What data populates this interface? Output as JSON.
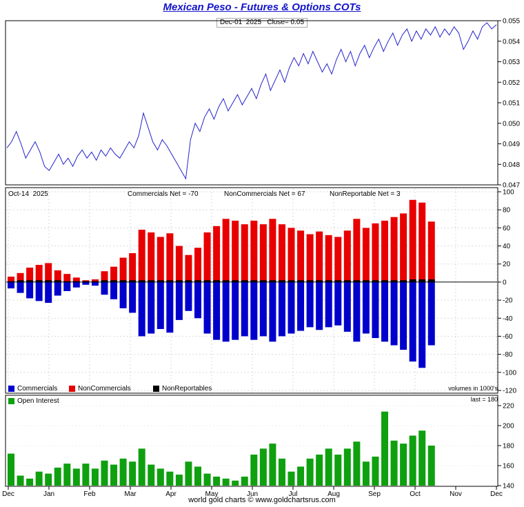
{
  "page": {
    "title": "Mexican Peso - Futures & Options COTs",
    "subtitle": "Dec-01  2025   Close= 0.05",
    "footer": "world gold charts © www.goldchartsrus.com"
  },
  "cot_header": {
    "date": "Oct-14  2025",
    "commercials": "Commercials Net = -70",
    "noncommercials": "NonCommercials Net = 67",
    "nonreportables": "NonReportable Net = 3"
  },
  "legend": {
    "commercials": "Commercials",
    "noncommercials": "NonCommercials",
    "nonreportables": "NonReportables",
    "open_interest": "Open Interest"
  },
  "notes": {
    "volumes": "volumes in 1000's",
    "last": "last = 180"
  },
  "colors": {
    "title": "#1414cc",
    "price_line": "#2222cc",
    "commercials": "#0000cc",
    "noncommercials": "#e80000",
    "nonreportables": "#000000",
    "open_interest": "#0fa00f",
    "grid": "#d9d9d9",
    "axis": "#000000"
  },
  "x_axis": {
    "labels": [
      "Dec",
      "Jan",
      "Feb",
      "Mar",
      "Apr",
      "May",
      "Jun",
      "Jul",
      "Aug",
      "Sep",
      "Oct",
      "Nov",
      "Dec"
    ]
  },
  "chart_data": [
    {
      "type": "line",
      "name": "peso-futures-price",
      "title": "Dec-01 2025 Close= 0.05",
      "ylim": [
        0.047,
        0.055
      ],
      "y_ticks": [
        "0.055",
        "0.054",
        "0.053",
        "0.052",
        "0.051",
        "0.050",
        "0.049",
        "0.048",
        "0.047"
      ],
      "x_range": [
        "Dec",
        "Dec"
      ],
      "values": [
        0.0488,
        0.0491,
        0.0496,
        0.049,
        0.0483,
        0.0487,
        0.0491,
        0.0486,
        0.0479,
        0.0477,
        0.0481,
        0.0485,
        0.048,
        0.0483,
        0.0479,
        0.0484,
        0.0487,
        0.0483,
        0.0486,
        0.0482,
        0.0487,
        0.0484,
        0.0488,
        0.0485,
        0.0483,
        0.0487,
        0.0491,
        0.0488,
        0.0494,
        0.0505,
        0.0498,
        0.0491,
        0.0487,
        0.0492,
        0.0489,
        0.0485,
        0.0481,
        0.0477,
        0.0473,
        0.0492,
        0.05,
        0.0496,
        0.0503,
        0.0507,
        0.0502,
        0.0508,
        0.0512,
        0.0506,
        0.051,
        0.0514,
        0.0509,
        0.0513,
        0.0517,
        0.0512,
        0.0519,
        0.0524,
        0.0516,
        0.0521,
        0.0526,
        0.052,
        0.0527,
        0.0532,
        0.0528,
        0.0534,
        0.0529,
        0.0535,
        0.053,
        0.0525,
        0.0529,
        0.0524,
        0.0531,
        0.0536,
        0.053,
        0.0535,
        0.0528,
        0.0534,
        0.0538,
        0.0532,
        0.0537,
        0.0541,
        0.0535,
        0.054,
        0.0544,
        0.0538,
        0.0543,
        0.0546,
        0.054,
        0.0545,
        0.0541,
        0.0546,
        0.0543,
        0.0547,
        0.0542,
        0.0546,
        0.0543,
        0.0547,
        0.0544,
        0.0536,
        0.054,
        0.0545,
        0.0541,
        0.0547,
        0.0549,
        0.0546,
        0.0548
      ]
    },
    {
      "type": "bar",
      "name": "cot-net-positions",
      "ylim": [
        -120,
        100
      ],
      "y_ticks": [
        "100",
        "80",
        "60",
        "40",
        "20",
        "0",
        "-20",
        "-40",
        "-60",
        "-80",
        "-100",
        "-120"
      ],
      "unit": "volumes in 1000's",
      "series": [
        {
          "name": "NonCommercials",
          "color_key": "noncommercials",
          "values": [
            6,
            10,
            16,
            19,
            21,
            13,
            9,
            5,
            2,
            3,
            12,
            17,
            27,
            32,
            58,
            55,
            50,
            54,
            40,
            30,
            38,
            55,
            62,
            70,
            68,
            64,
            68,
            64,
            70,
            64,
            60,
            57,
            53,
            56,
            52,
            50,
            57,
            70,
            60,
            65,
            68,
            72,
            76,
            91,
            88,
            67
          ]
        },
        {
          "name": "Commercials",
          "color_key": "commercials",
          "values": [
            -7,
            -12,
            -18,
            -21,
            -23,
            -15,
            -10,
            -6,
            -3,
            -4,
            -14,
            -19,
            -29,
            -34,
            -60,
            -57,
            -52,
            -56,
            -42,
            -32,
            -40,
            -57,
            -64,
            -66,
            -64,
            -60,
            -64,
            -60,
            -66,
            -60,
            -57,
            -54,
            -50,
            -53,
            -50,
            -48,
            -55,
            -66,
            -57,
            -62,
            -66,
            -70,
            -75,
            -88,
            -95,
            -70
          ]
        },
        {
          "name": "NonReportables",
          "color_key": "nonreportables",
          "values": [
            1,
            2,
            2,
            2,
            2,
            2,
            1,
            1,
            1,
            1,
            2,
            2,
            2,
            2,
            2,
            2,
            2,
            2,
            2,
            2,
            2,
            2,
            2,
            2,
            2,
            2,
            2,
            2,
            2,
            2,
            2,
            2,
            2,
            2,
            2,
            2,
            2,
            2,
            2,
            2,
            2,
            2,
            2,
            3,
            3,
            3
          ]
        }
      ]
    },
    {
      "type": "bar",
      "name": "open-interest",
      "ylim": [
        140,
        220
      ],
      "y_ticks": [
        "220",
        "200",
        "180",
        "160",
        "140"
      ],
      "last": 180,
      "values": [
        172,
        150,
        147,
        154,
        152,
        158,
        162,
        157,
        162,
        157,
        165,
        161,
        167,
        164,
        177,
        161,
        157,
        154,
        151,
        164,
        159,
        152,
        149,
        147,
        145,
        149,
        171,
        177,
        182,
        167,
        154,
        159,
        167,
        171,
        177,
        171,
        177,
        184,
        164,
        169,
        214,
        185,
        182,
        190,
        195,
        180
      ]
    }
  ]
}
